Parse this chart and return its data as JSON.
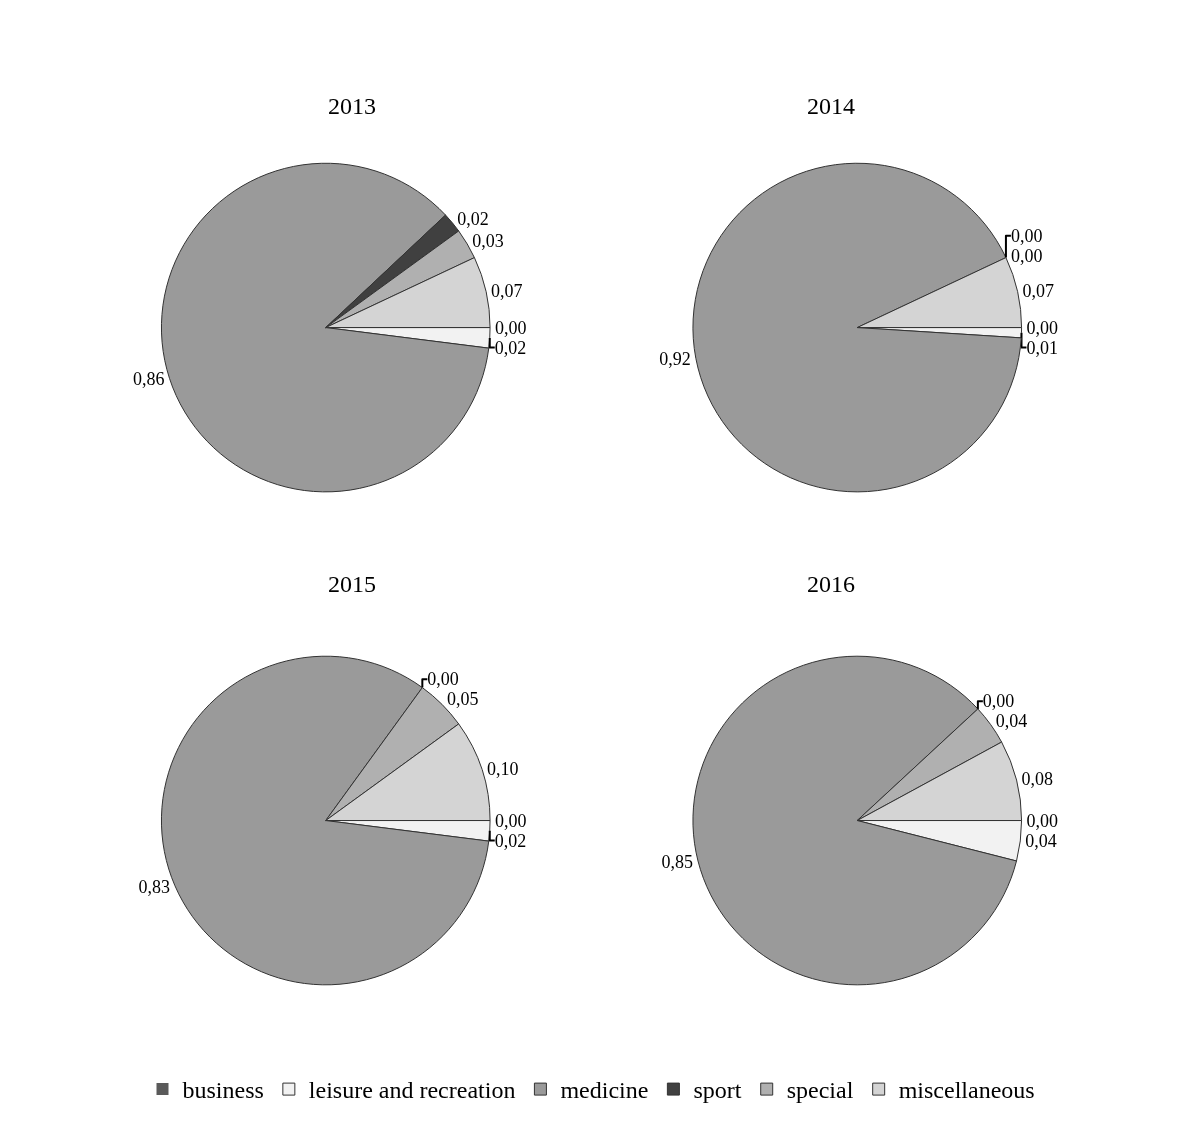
{
  "chart_data": [
    {
      "type": "pie",
      "title": "2013",
      "categories": [
        "business",
        "leisure and recreation",
        "medicine",
        "sport",
        "special",
        "miscellaneous"
      ],
      "values": [
        0.0,
        0.02,
        0.86,
        0.02,
        0.03,
        0.07
      ],
      "value_labels": [
        "0,00",
        "0,02",
        "0,86",
        "0,02",
        "0,03",
        "0,07"
      ],
      "colors": [
        "#5a5a5a",
        "#f2f2f2",
        "#9a9a9a",
        "#404040",
        "#b0b0b0",
        "#d4d4d4"
      ],
      "legend": "bottom"
    },
    {
      "type": "pie",
      "title": "2014",
      "categories": [
        null,
        null,
        null,
        null,
        null,
        null
      ],
      "values": [
        0.0,
        0.01,
        0.92,
        0.0,
        0.0,
        0.07
      ],
      "value_labels": [
        "0,00",
        "0,01",
        "0,92",
        "0,00",
        "0,00",
        "0,07"
      ],
      "colors": [
        "#5a5a5a",
        "#f2f2f2",
        "#9a9a9a",
        "#404040",
        "#b0b0b0",
        "#d4d4d4"
      ]
    },
    {
      "type": "pie",
      "title": "2015",
      "categories": [
        null,
        null,
        null,
        null,
        null,
        null
      ],
      "values": [
        0.0,
        0.02,
        0.83,
        0.0,
        0.05,
        0.1
      ],
      "value_labels": [
        "0,00",
        "0,02",
        "0,83",
        "0,00",
        "0,05",
        "0,10"
      ],
      "colors": [
        "#5a5a5a",
        "#f2f2f2",
        "#9a9a9a",
        "#404040",
        "#b0b0b0",
        "#d4d4d4"
      ]
    },
    {
      "type": "pie",
      "title": "2016",
      "categories": [
        null,
        null,
        null,
        null,
        null,
        null
      ],
      "values": [
        0.0,
        0.04,
        0.85,
        0.0,
        0.04,
        0.08
      ],
      "value_labels": [
        "0,00",
        "0,04",
        "0,85",
        "0,00",
        "0,04",
        "0,08"
      ],
      "colors": [
        "#5a5a5a",
        "#f2f2f2",
        "#9a9a9a",
        "#404040",
        "#b0b0b0",
        "#d4d4d4"
      ]
    }
  ]
}
